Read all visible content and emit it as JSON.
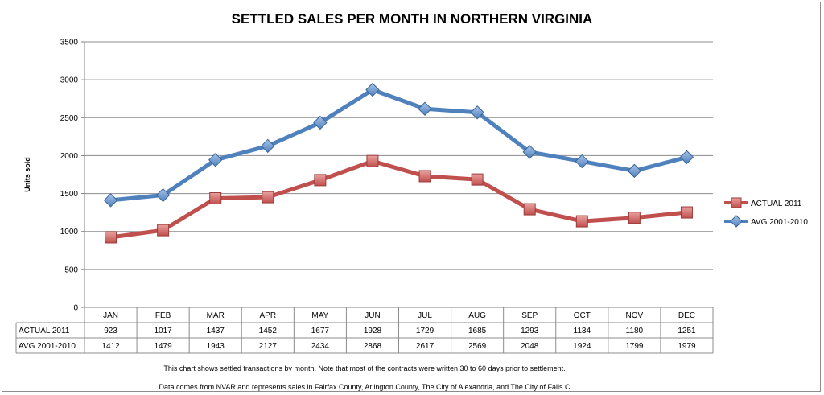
{
  "chart_data": {
    "type": "line",
    "title": "SETTLED SALES  PER MONTH IN NORTHERN VIRGINIA",
    "ylabel": "Units sold",
    "xlabel": "",
    "categories": [
      "JAN",
      "FEB",
      "MAR",
      "APR",
      "MAY",
      "JUN",
      "JUL",
      "AUG",
      "SEP",
      "OCT",
      "NOV",
      "DEC"
    ],
    "series": [
      {
        "name": "ACTUAL 2011",
        "values": [
          923,
          1017,
          1437,
          1452,
          1677,
          1928,
          1729,
          1685,
          1293,
          1134,
          1180,
          1251
        ],
        "color": "#c0504d"
      },
      {
        "name": "AVG 2001-2010",
        "values": [
          1412,
          1479,
          1943,
          2127,
          2434,
          2868,
          2617,
          2569,
          2048,
          1924,
          1799,
          1979
        ],
        "color": "#4f81bd"
      }
    ],
    "ylim": [
      0,
      3500
    ],
    "yticks": [
      0,
      500,
      1000,
      1500,
      2000,
      2500,
      3000,
      3500
    ],
    "grid": true,
    "legend_position": "right",
    "data_table": true
  },
  "footnotes": [
    "This chart shows settled transactions by month.  Note that most of the contracts were written 30 to 60 days prior to settlement.",
    "Data comes from NVAR and represents sales in Fairfax County, Arlington County, The City of Alexandria, and The City of  Falls C"
  ]
}
